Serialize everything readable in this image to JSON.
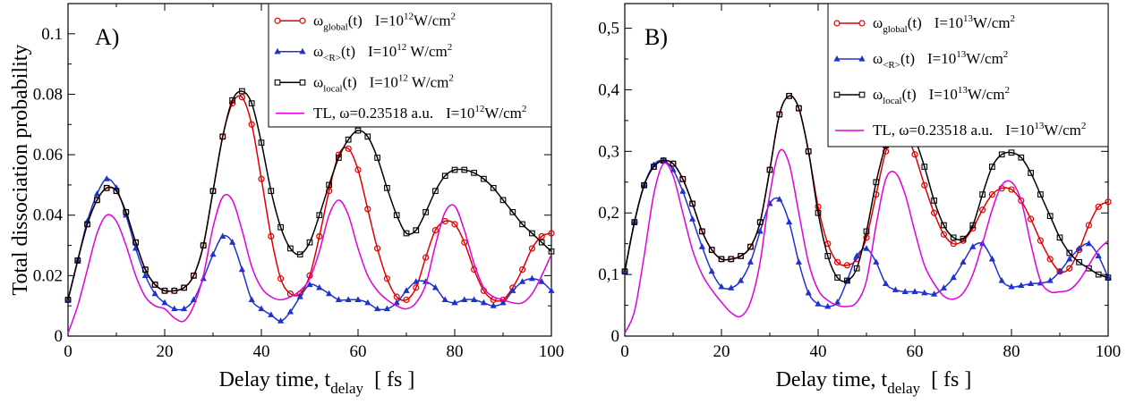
{
  "chart_data": [
    {
      "type": "line",
      "panel_label": "A)",
      "xlabel": "Delay time,  t",
      "xlabel_sub": "delay",
      "xlabel_unit": "[ fs ]",
      "ylabel": "Total dissociation probability",
      "xlim": [
        0,
        100
      ],
      "ylim": [
        0,
        0.11
      ],
      "xticks": [
        "0",
        "20",
        "40",
        "60",
        "80",
        "100"
      ],
      "yticks": [
        "0",
        "0.02",
        "0.04",
        "0.06",
        "0.08",
        "0.1"
      ],
      "legend_position": "top-right",
      "series": [
        {
          "name": "ω_global(t)   I=10^12W/cm^2",
          "legend": {
            "sym": "ω",
            "sub": "global",
            "args": "(t)",
            "pre": "I=10",
            "exp": "12",
            "post": "W/cm",
            "unit_exp": "2"
          },
          "color": "#e00000",
          "marker": "circle",
          "x": [
            0,
            2,
            4,
            6,
            8,
            10,
            12,
            14,
            16,
            18,
            20,
            22,
            24,
            26,
            28,
            30,
            32,
            34,
            36,
            38,
            40,
            42,
            44,
            46,
            48,
            50,
            52,
            54,
            56,
            58,
            60,
            62,
            64,
            66,
            68,
            70,
            72,
            74,
            76,
            78,
            80,
            82,
            84,
            86,
            88,
            90,
            92,
            94,
            96,
            98,
            100
          ],
          "y": [
            0.012,
            0.025,
            0.037,
            0.045,
            0.049,
            0.048,
            0.041,
            0.031,
            0.022,
            0.017,
            0.015,
            0.015,
            0.016,
            0.02,
            0.03,
            0.048,
            0.066,
            0.077,
            0.079,
            0.07,
            0.052,
            0.033,
            0.019,
            0.014,
            0.014,
            0.02,
            0.033,
            0.048,
            0.06,
            0.062,
            0.055,
            0.042,
            0.029,
            0.019,
            0.013,
            0.012,
            0.016,
            0.026,
            0.035,
            0.038,
            0.037,
            0.031,
            0.022,
            0.015,
            0.012,
            0.012,
            0.016,
            0.022,
            0.029,
            0.033,
            0.034
          ]
        },
        {
          "name": "ω_<R>(t)   I=10^12 W/cm^2",
          "legend": {
            "sym": "ω",
            "sub": "<R>",
            "args": "(t)",
            "pre": "I=10",
            "exp": "12",
            "post": " W/cm",
            "unit_exp": "2"
          },
          "color": "#1f32d0",
          "marker": "triangle",
          "x": [
            0,
            2,
            4,
            6,
            8,
            10,
            12,
            14,
            16,
            18,
            20,
            22,
            24,
            26,
            28,
            30,
            32,
            34,
            36,
            38,
            40,
            42,
            44,
            46,
            48,
            50,
            52,
            54,
            56,
            58,
            60,
            62,
            64,
            66,
            68,
            70,
            72,
            74,
            76,
            78,
            80,
            82,
            84,
            86,
            88,
            90,
            92,
            94,
            96,
            98,
            100
          ],
          "y": [
            0.012,
            0.025,
            0.038,
            0.047,
            0.052,
            0.049,
            0.04,
            0.029,
            0.02,
            0.014,
            0.011,
            0.009,
            0.009,
            0.012,
            0.019,
            0.027,
            0.033,
            0.031,
            0.022,
            0.012,
            0.009,
            0.007,
            0.005,
            0.008,
            0.013,
            0.017,
            0.016,
            0.014,
            0.012,
            0.012,
            0.012,
            0.011,
            0.009,
            0.009,
            0.011,
            0.015,
            0.018,
            0.018,
            0.016,
            0.012,
            0.011,
            0.012,
            0.012,
            0.011,
            0.01,
            0.011,
            0.015,
            0.018,
            0.019,
            0.018,
            0.015
          ]
        },
        {
          "name": "ω_local(t)   I=10^12 W/cm^2",
          "legend": {
            "sym": "ω",
            "sub": "local",
            "args": "(t)",
            "pre": "I=10",
            "exp": "12",
            "post": " W/cm",
            "unit_exp": "2"
          },
          "color": "#000000",
          "marker": "square",
          "x": [
            0,
            2,
            4,
            6,
            8,
            10,
            12,
            14,
            16,
            18,
            20,
            22,
            24,
            26,
            28,
            30,
            32,
            34,
            36,
            38,
            40,
            42,
            44,
            46,
            48,
            50,
            52,
            54,
            56,
            58,
            60,
            62,
            64,
            66,
            68,
            70,
            72,
            74,
            76,
            78,
            80,
            82,
            84,
            86,
            88,
            90,
            92,
            94,
            96,
            98,
            100
          ],
          "y": [
            0.012,
            0.025,
            0.037,
            0.045,
            0.049,
            0.048,
            0.041,
            0.031,
            0.022,
            0.017,
            0.015,
            0.015,
            0.016,
            0.02,
            0.03,
            0.048,
            0.066,
            0.078,
            0.081,
            0.077,
            0.064,
            0.048,
            0.036,
            0.029,
            0.027,
            0.031,
            0.04,
            0.05,
            0.059,
            0.065,
            0.068,
            0.066,
            0.059,
            0.049,
            0.04,
            0.034,
            0.035,
            0.041,
            0.048,
            0.053,
            0.055,
            0.055,
            0.054,
            0.052,
            0.049,
            0.045,
            0.041,
            0.037,
            0.034,
            0.031,
            0.028
          ]
        },
        {
          "name": "TL, ω=0.23518 a.u.    I=10^12W/cm^2",
          "legend": {
            "sym": "TL, ω=0.23518 a.u.",
            "sub": "",
            "args": "",
            "pre": "I=10",
            "exp": "12",
            "post": "W/cm",
            "unit_exp": "2"
          },
          "color": "#e000e0",
          "marker": "none",
          "x": [
            0,
            2,
            4,
            6,
            8,
            10,
            12,
            14,
            16,
            18,
            20,
            22,
            24,
            26,
            28,
            30,
            32,
            34,
            36,
            38,
            40,
            42,
            44,
            46,
            48,
            50,
            52,
            54,
            56,
            58,
            60,
            62,
            64,
            66,
            68,
            70,
            72,
            74,
            76,
            78,
            80,
            82,
            84,
            86,
            88,
            90,
            92,
            94,
            96,
            98,
            100
          ],
          "y": [
            0.001,
            0.01,
            0.022,
            0.034,
            0.04,
            0.038,
            0.03,
            0.02,
            0.013,
            0.01,
            0.009,
            0.006,
            0.005,
            0.01,
            0.02,
            0.036,
            0.046,
            0.045,
            0.035,
            0.023,
            0.016,
            0.013,
            0.012,
            0.013,
            0.015,
            0.019,
            0.028,
            0.04,
            0.045,
            0.04,
            0.029,
            0.02,
            0.015,
            0.012,
            0.01,
            0.009,
            0.011,
            0.017,
            0.03,
            0.041,
            0.043,
            0.035,
            0.024,
            0.016,
            0.013,
            0.012,
            0.011,
            0.011,
            0.014,
            0.02,
            0.027
          ]
        }
      ]
    },
    {
      "type": "line",
      "panel_label": "B)",
      "xlabel": "Delay time,  t",
      "xlabel_sub": "delay",
      "xlabel_unit": "[ fs ]",
      "ylabel": "",
      "xlim": [
        0,
        100
      ],
      "ylim": [
        0,
        0.54
      ],
      "xticks": [
        "0",
        "20",
        "40",
        "60",
        "80",
        "100"
      ],
      "yticks": [
        "0",
        "0,1",
        "0,2",
        "0,3",
        "0,4",
        "0,5"
      ],
      "legend_position": "top-right",
      "series": [
        {
          "name": "ω_global(t)   I=10^13W/cm^2",
          "legend": {
            "sym": "ω",
            "sub": "global",
            "args": "(t)",
            "pre": "I=10",
            "exp": "13",
            "post": "W/cm",
            "unit_exp": "2"
          },
          "color": "#e00000",
          "marker": "circle",
          "x": [
            0,
            2,
            4,
            6,
            8,
            10,
            12,
            14,
            16,
            18,
            20,
            22,
            24,
            26,
            28,
            30,
            32,
            34,
            36,
            38,
            40,
            42,
            44,
            46,
            48,
            50,
            52,
            54,
            56,
            58,
            60,
            62,
            64,
            66,
            68,
            70,
            72,
            74,
            76,
            78,
            80,
            82,
            84,
            86,
            88,
            90,
            92,
            94,
            96,
            98,
            100
          ],
          "y": [
            0.105,
            0.185,
            0.245,
            0.275,
            0.285,
            0.28,
            0.255,
            0.215,
            0.17,
            0.14,
            0.125,
            0.125,
            0.13,
            0.145,
            0.185,
            0.27,
            0.36,
            0.39,
            0.37,
            0.3,
            0.21,
            0.15,
            0.12,
            0.115,
            0.125,
            0.16,
            0.23,
            0.3,
            0.335,
            0.33,
            0.295,
            0.245,
            0.2,
            0.165,
            0.15,
            0.155,
            0.175,
            0.205,
            0.23,
            0.24,
            0.238,
            0.22,
            0.19,
            0.155,
            0.125,
            0.105,
            0.11,
            0.14,
            0.18,
            0.21,
            0.218
          ]
        },
        {
          "name": "ω_<R>(t)   I=10^13W/cm^2",
          "legend": {
            "sym": "ω",
            "sub": "<R>",
            "args": "(t)",
            "pre": "I=10",
            "exp": "13",
            "post": "W/cm",
            "unit_exp": "2"
          },
          "color": "#1f32d0",
          "marker": "triangle",
          "x": [
            0,
            2,
            4,
            6,
            8,
            10,
            12,
            14,
            16,
            18,
            20,
            22,
            24,
            26,
            28,
            30,
            32,
            34,
            36,
            38,
            40,
            42,
            44,
            46,
            48,
            50,
            52,
            54,
            56,
            58,
            60,
            62,
            64,
            66,
            68,
            70,
            72,
            74,
            76,
            78,
            80,
            82,
            84,
            86,
            88,
            90,
            92,
            94,
            96,
            98,
            100
          ],
          "y": [
            0.105,
            0.185,
            0.245,
            0.278,
            0.285,
            0.27,
            0.235,
            0.19,
            0.145,
            0.105,
            0.08,
            0.078,
            0.09,
            0.12,
            0.17,
            0.215,
            0.222,
            0.185,
            0.12,
            0.07,
            0.052,
            0.048,
            0.055,
            0.09,
            0.13,
            0.142,
            0.12,
            0.085,
            0.075,
            0.072,
            0.072,
            0.07,
            0.068,
            0.078,
            0.095,
            0.12,
            0.145,
            0.15,
            0.125,
            0.09,
            0.08,
            0.082,
            0.085,
            0.086,
            0.09,
            0.105,
            0.125,
            0.142,
            0.15,
            0.13,
            0.095
          ]
        },
        {
          "name": "ω_local(t)   I=10^13W/cm^2",
          "legend": {
            "sym": "ω",
            "sub": "local",
            "args": "(t)",
            "pre": "I=10",
            "exp": "13",
            "post": "W/cm",
            "unit_exp": "2"
          },
          "color": "#000000",
          "marker": "square",
          "x": [
            0,
            2,
            4,
            6,
            8,
            10,
            12,
            14,
            16,
            18,
            20,
            22,
            24,
            26,
            28,
            30,
            32,
            34,
            36,
            38,
            40,
            42,
            44,
            46,
            48,
            50,
            52,
            54,
            56,
            58,
            60,
            62,
            64,
            66,
            68,
            70,
            72,
            74,
            76,
            78,
            80,
            82,
            84,
            86,
            88,
            90,
            92,
            94,
            96,
            98,
            100
          ],
          "y": [
            0.105,
            0.185,
            0.245,
            0.275,
            0.285,
            0.28,
            0.255,
            0.215,
            0.17,
            0.14,
            0.125,
            0.125,
            0.13,
            0.145,
            0.185,
            0.27,
            0.36,
            0.39,
            0.37,
            0.3,
            0.2,
            0.13,
            0.095,
            0.09,
            0.11,
            0.17,
            0.25,
            0.31,
            0.34,
            0.342,
            0.32,
            0.275,
            0.22,
            0.18,
            0.16,
            0.158,
            0.18,
            0.23,
            0.275,
            0.295,
            0.298,
            0.29,
            0.265,
            0.23,
            0.195,
            0.16,
            0.135,
            0.12,
            0.11,
            0.1,
            0.095
          ]
        },
        {
          "name": "TL, ω=0.23518 a.u.    I=10^13W/cm^2",
          "legend": {
            "sym": "TL, ω=0.23518 a.u.",
            "sub": "",
            "args": "",
            "pre": "I=10",
            "exp": "13",
            "post": "W/cm",
            "unit_exp": "2"
          },
          "color": "#e000e0",
          "marker": "none",
          "x": [
            0,
            2,
            4,
            6,
            8,
            10,
            12,
            14,
            16,
            18,
            20,
            22,
            24,
            26,
            28,
            30,
            32,
            34,
            36,
            38,
            40,
            42,
            44,
            46,
            48,
            50,
            52,
            54,
            56,
            58,
            60,
            62,
            64,
            66,
            68,
            70,
            72,
            74,
            76,
            78,
            80,
            82,
            84,
            86,
            88,
            90,
            92,
            94,
            96,
            98,
            100
          ],
          "y": [
            0.005,
            0.04,
            0.13,
            0.23,
            0.28,
            0.26,
            0.2,
            0.14,
            0.1,
            0.075,
            0.055,
            0.038,
            0.032,
            0.055,
            0.12,
            0.23,
            0.3,
            0.28,
            0.2,
            0.12,
            0.075,
            0.058,
            0.05,
            0.048,
            0.055,
            0.09,
            0.18,
            0.255,
            0.265,
            0.23,
            0.17,
            0.115,
            0.085,
            0.065,
            0.06,
            0.07,
            0.1,
            0.15,
            0.205,
            0.245,
            0.25,
            0.22,
            0.15,
            0.09,
            0.072,
            0.072,
            0.075,
            0.09,
            0.115,
            0.14,
            0.155
          ]
        }
      ]
    }
  ]
}
